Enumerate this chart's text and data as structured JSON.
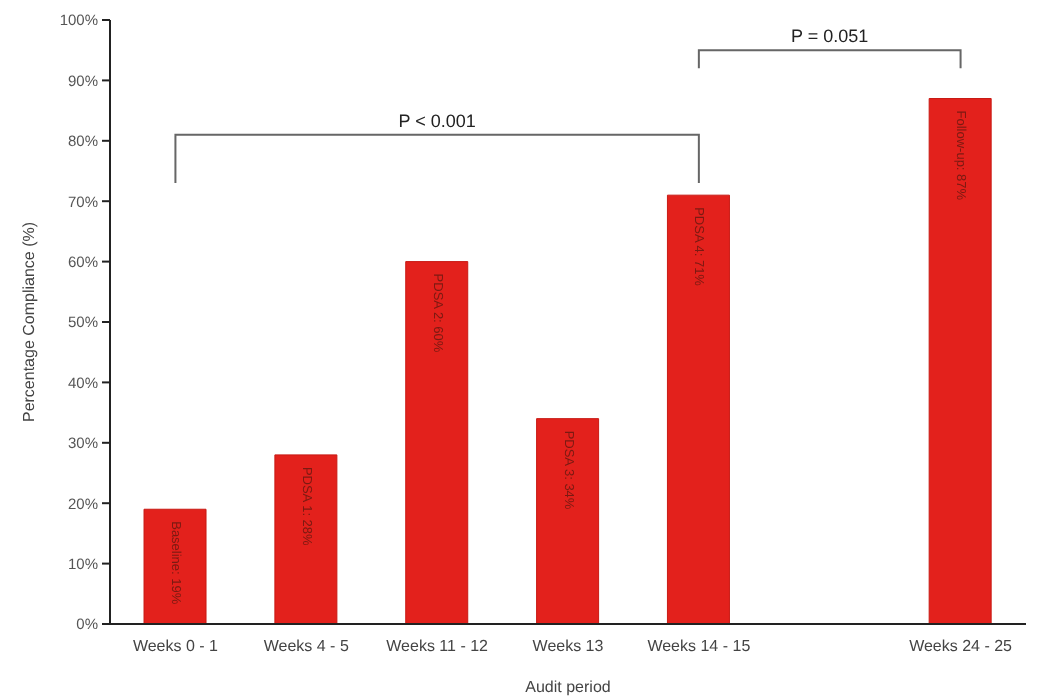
{
  "chart_data": {
    "type": "bar",
    "xlabel": "Audit period",
    "ylabel": "Percentage Compliance (%)",
    "categories": [
      "Weeks 0 - 1",
      "Weeks 4 - 5",
      "Weeks 11 - 12",
      "Weeks 13",
      "Weeks 14 - 15",
      null,
      "Weeks 24 - 25"
    ],
    "values": [
      19,
      28,
      60,
      34,
      71,
      null,
      87
    ],
    "value_labels": [
      "Baseline: 19%",
      "PDSA 1: 28%",
      "PDSA 2: 60%",
      "PDSA 3: 34%",
      "PDSA 4: 71%",
      null,
      "Follow-up: 87%"
    ],
    "color": "#e3211c",
    "ylim": [
      0,
      100
    ],
    "yticks": [
      {
        "value": 0,
        "label": "0%"
      },
      {
        "value": 10,
        "label": "10%"
      },
      {
        "value": 20,
        "label": "20%"
      },
      {
        "value": 30,
        "label": "30%"
      },
      {
        "value": 40,
        "label": "40%"
      },
      {
        "value": 50,
        "label": "50%"
      },
      {
        "value": 60,
        "label": "60%"
      },
      {
        "value": 70,
        "label": "70%"
      },
      {
        "value": 80,
        "label": "80%"
      },
      {
        "value": 90,
        "label": "90%"
      },
      {
        "value": 100,
        "label": "100%"
      }
    ],
    "grid": false,
    "legend": false,
    "annotations": [
      "P < 0.001",
      "P = 0.051"
    ]
  }
}
